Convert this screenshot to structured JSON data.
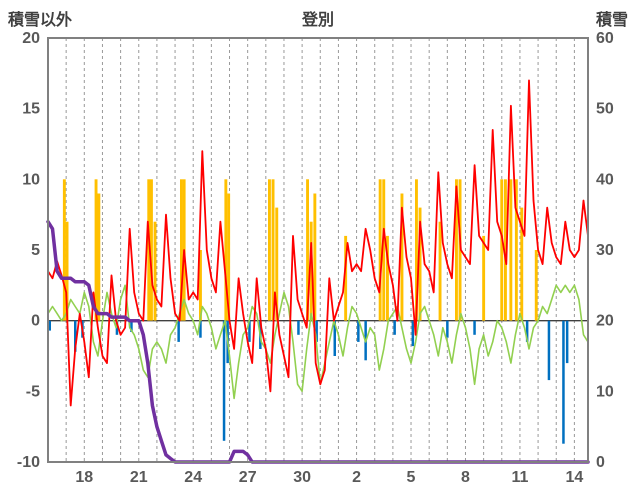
{
  "chart_data": {
    "type": "line",
    "title": "登別",
    "background": "#FFFFFF",
    "legend": "none",
    "grid": "vertical-dashed",
    "left_axis": {
      "label": "積雪以外",
      "min": -10,
      "max": 20,
      "ticks": [
        20,
        15,
        10,
        5,
        0,
        -5,
        -10
      ]
    },
    "right_axis": {
      "label": "積雪",
      "min": 0,
      "max": 60,
      "ticks": [
        60,
        50,
        40,
        30,
        20,
        10,
        0
      ]
    },
    "x_axis": {
      "tick_labels": [
        "18",
        "21",
        "24",
        "27",
        "30",
        "2",
        "5",
        "8",
        "11",
        "14"
      ],
      "tick_t": [
        2,
        5,
        8,
        11,
        14,
        17,
        20,
        23,
        26,
        29
      ],
      "t_min": 0,
      "t_max": 29.75,
      "grid_interval": 1
    },
    "step_days": 0.25,
    "colors": {
      "grid": "#999999",
      "border": "#808080",
      "zero_line": "#404040",
      "tick_text": "#595959",
      "title_text": "#404040"
    },
    "series": [
      {
        "name": "green-line",
        "color": "#92D050",
        "axis": "left",
        "width": 1.6,
        "values": [
          0.5,
          1.0,
          0.5,
          0.0,
          0.5,
          1.5,
          1.0,
          0.5,
          2.0,
          1.0,
          -1.5,
          -2.5,
          0.0,
          2.0,
          0.5,
          -0.5,
          1.5,
          2.5,
          -0.5,
          -1.0,
          -2.0,
          -3.5,
          -4.0,
          -2.0,
          -1.5,
          -2.0,
          -3.0,
          -1.0,
          -0.5,
          0.5,
          1.5,
          0.5,
          0.0,
          -1.0,
          1.0,
          0.5,
          -0.5,
          -2.0,
          -1.0,
          0.0,
          -2.5,
          -5.5,
          -3.0,
          -1.0,
          -0.5,
          1.0,
          0.5,
          -1.5,
          -2.0,
          -3.0,
          -1.0,
          0.5,
          2.0,
          1.0,
          -1.5,
          -4.5,
          -5.0,
          -2.0,
          0.5,
          -1.0,
          -4.5,
          -3.0,
          -1.5,
          0.0,
          -1.0,
          -2.5,
          -0.5,
          1.0,
          0.5,
          -0.5,
          -1.5,
          -0.5,
          -1.0,
          -3.5,
          -2.0,
          0.0,
          0.5,
          1.0,
          -0.5,
          -2.0,
          -3.0,
          -1.5,
          0.5,
          1.0,
          0.0,
          -1.0,
          -2.5,
          -0.5,
          -1.5,
          -3.0,
          -1.0,
          0.5,
          -0.5,
          -2.0,
          -4.5,
          -2.0,
          -1.0,
          -2.5,
          -1.5,
          0.0,
          -0.5,
          -1.5,
          -3.0,
          -1.0,
          0.5,
          -0.5,
          -2.0,
          -0.5,
          0.0,
          1.0,
          0.5,
          1.5,
          2.5,
          2.0,
          2.5,
          2.0,
          2.5,
          1.5,
          -1.0,
          -1.5
        ]
      },
      {
        "name": "red-line",
        "color": "#FF0000",
        "axis": "left",
        "width": 1.8,
        "values": [
          3.5,
          3.0,
          4.2,
          3.2,
          2.0,
          -6.0,
          -2.0,
          0.5,
          -1.5,
          -4.0,
          2.0,
          -0.5,
          -2.5,
          -3.0,
          3.2,
          0.0,
          -1.0,
          -0.5,
          6.5,
          2.0,
          0.5,
          0.0,
          7.0,
          2.5,
          1.5,
          1.0,
          7.5,
          3.0,
          0.5,
          0.0,
          5.0,
          1.5,
          2.0,
          1.5,
          12.0,
          5.0,
          3.0,
          2.0,
          7.0,
          3.5,
          0.0,
          -2.0,
          3.0,
          0.5,
          -1.5,
          -3.0,
          3.0,
          -0.5,
          -2.0,
          -5.0,
          2.0,
          -1.0,
          -2.5,
          -4.0,
          6.0,
          1.5,
          0.5,
          -0.5,
          5.5,
          -3.0,
          -4.5,
          -3.5,
          3.0,
          0.0,
          1.0,
          2.0,
          5.5,
          3.5,
          4.0,
          3.5,
          6.5,
          5.0,
          3.0,
          2.0,
          6.5,
          4.0,
          2.5,
          0.0,
          8.0,
          4.5,
          3.0,
          -1.0,
          7.0,
          4.0,
          3.5,
          2.0,
          10.5,
          5.5,
          4.0,
          3.0,
          9.5,
          5.0,
          4.5,
          4.0,
          11.0,
          6.0,
          5.5,
          5.0,
          13.5,
          7.0,
          6.0,
          4.0,
          15.2,
          8.0,
          7.0,
          6.0,
          17.0,
          8.5,
          5.0,
          4.0,
          8.0,
          5.5,
          4.5,
          4.0,
          7.0,
          5.0,
          4.5,
          5.0,
          8.5,
          6.0
        ]
      },
      {
        "name": "purple-snow-line",
        "color": "#7030A0",
        "axis": "right",
        "width": 3.5,
        "values": [
          34,
          33,
          27,
          26,
          26,
          26,
          25.5,
          25.5,
          25.5,
          25,
          22,
          21,
          21,
          21,
          20.5,
          20.5,
          20.5,
          20.5,
          20,
          20,
          20,
          18,
          14,
          8,
          5,
          3,
          1,
          0.5,
          0,
          0,
          0,
          0,
          0,
          0,
          0,
          0,
          0,
          0,
          0,
          0,
          0,
          1.5,
          1.5,
          1.5,
          1,
          0,
          0,
          0,
          0,
          0,
          0,
          0,
          0,
          0,
          0,
          0,
          0,
          0,
          0,
          0,
          0,
          0,
          0,
          0,
          0,
          0,
          0,
          0,
          0,
          0,
          0,
          0,
          0,
          0,
          0,
          0,
          0,
          0,
          0,
          0,
          0,
          0,
          0,
          0,
          0,
          0,
          0,
          0,
          0,
          0,
          0,
          0,
          0,
          0,
          0,
          0,
          0,
          0,
          0,
          0,
          0,
          0,
          0,
          0,
          0,
          0,
          0,
          0,
          0,
          0,
          0,
          0,
          0,
          0,
          0,
          0,
          0,
          0,
          0,
          0
        ]
      }
    ],
    "bars": [
      {
        "name": "orange-bars",
        "color": "#FFC000",
        "axis": "left",
        "bar_width_days": 0.16,
        "points": [
          [
            0.9,
            10
          ],
          [
            1.05,
            7
          ],
          [
            2.65,
            10
          ],
          [
            2.8,
            9
          ],
          [
            5.55,
            10
          ],
          [
            5.7,
            10
          ],
          [
            5.9,
            7
          ],
          [
            7.35,
            10
          ],
          [
            7.5,
            10
          ],
          [
            8.4,
            5
          ],
          [
            9.8,
            10
          ],
          [
            9.95,
            9
          ],
          [
            12.2,
            10
          ],
          [
            12.4,
            10
          ],
          [
            12.6,
            8
          ],
          [
            14.3,
            10
          ],
          [
            14.5,
            7
          ],
          [
            14.7,
            9
          ],
          [
            16.4,
            6
          ],
          [
            18.3,
            10
          ],
          [
            18.5,
            10
          ],
          [
            18.7,
            6
          ],
          [
            19.5,
            9
          ],
          [
            20.3,
            10
          ],
          [
            20.5,
            8
          ],
          [
            21.6,
            7
          ],
          [
            22.5,
            10
          ],
          [
            22.7,
            10
          ],
          [
            24.0,
            6
          ],
          [
            25.0,
            10
          ],
          [
            25.2,
            10
          ],
          [
            25.5,
            10
          ],
          [
            25.8,
            10
          ],
          [
            26.1,
            8
          ],
          [
            26.9,
            5
          ]
        ]
      },
      {
        "name": "blue-bars",
        "color": "#0070C0",
        "axis": "left",
        "bar_width_days": 0.14,
        "points": [
          [
            0.1,
            -0.7
          ],
          [
            1.5,
            -2.2
          ],
          [
            1.9,
            -1.2
          ],
          [
            3.8,
            -1.0
          ],
          [
            4.6,
            -0.8
          ],
          [
            7.2,
            -1.5
          ],
          [
            8.4,
            -1.2
          ],
          [
            9.7,
            -8.5
          ],
          [
            9.9,
            -3.0
          ],
          [
            11.1,
            -1.5
          ],
          [
            11.7,
            -2.0
          ],
          [
            13.8,
            -1.0
          ],
          [
            14.8,
            -1.5
          ],
          [
            15.8,
            -2.5
          ],
          [
            17.1,
            -1.5
          ],
          [
            17.5,
            -2.8
          ],
          [
            19.1,
            -1.0
          ],
          [
            20.1,
            -1.8
          ],
          [
            22.0,
            -1.2
          ],
          [
            23.5,
            -1.0
          ],
          [
            26.4,
            -1.5
          ],
          [
            27.6,
            -4.2
          ],
          [
            28.4,
            -8.7
          ],
          [
            28.6,
            -3.0
          ]
        ]
      }
    ]
  }
}
